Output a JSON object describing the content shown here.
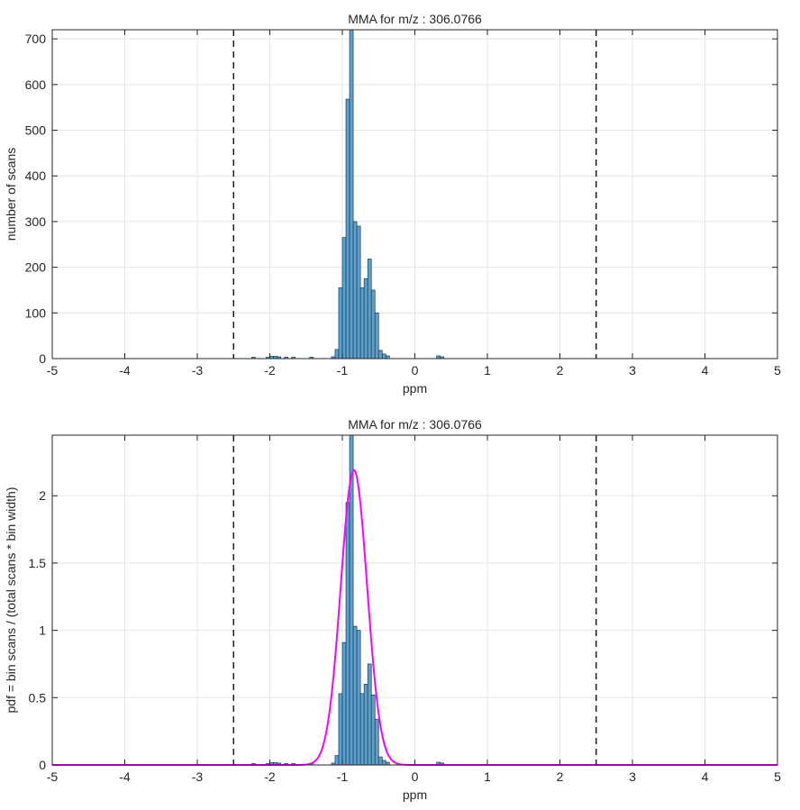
{
  "chart_data": [
    {
      "type": "bar",
      "title": "MMA for m/z : 306.0766",
      "xlabel": "ppm",
      "ylabel": "number of scans",
      "xlim": [
        -5,
        5
      ],
      "ylim": [
        0,
        720
      ],
      "xticks": [
        -5,
        -4,
        -3,
        -2,
        -1,
        0,
        1,
        2,
        3,
        4,
        5
      ],
      "yticks": [
        0,
        100,
        200,
        300,
        400,
        500,
        600,
        700
      ],
      "ytick_labels": [
        "0",
        "100",
        "200",
        "300",
        "400",
        "500",
        "600",
        "700"
      ],
      "grid": true,
      "bin_width": 0.05,
      "bins": [
        {
          "x": -2.25,
          "v": 3
        },
        {
          "x": -2.05,
          "v": 3
        },
        {
          "x": -2.0,
          "v": 5
        },
        {
          "x": -1.95,
          "v": 5
        },
        {
          "x": -1.9,
          "v": 4
        },
        {
          "x": -1.8,
          "v": 3
        },
        {
          "x": -1.7,
          "v": 3
        },
        {
          "x": -1.45,
          "v": 3
        },
        {
          "x": -1.15,
          "v": 4
        },
        {
          "x": -1.1,
          "v": 20
        },
        {
          "x": -1.05,
          "v": 155
        },
        {
          "x": -1.0,
          "v": 265
        },
        {
          "x": -0.95,
          "v": 568
        },
        {
          "x": -0.9,
          "v": 720
        },
        {
          "x": -0.85,
          "v": 300
        },
        {
          "x": -0.8,
          "v": 290
        },
        {
          "x": -0.75,
          "v": 155
        },
        {
          "x": -0.7,
          "v": 175
        },
        {
          "x": -0.65,
          "v": 218
        },
        {
          "x": -0.6,
          "v": 150
        },
        {
          "x": -0.55,
          "v": 100
        },
        {
          "x": -0.5,
          "v": 18
        },
        {
          "x": -0.45,
          "v": 10
        },
        {
          "x": -0.4,
          "v": 6
        },
        {
          "x": 0.3,
          "v": 6
        },
        {
          "x": 0.35,
          "v": 4
        }
      ],
      "vlines": [
        -2.5,
        2.5
      ]
    },
    {
      "type": "bar",
      "title": "MMA for m/z : 306.0766",
      "xlabel": "ppm",
      "ylabel": "pdf = bin scans / (total scans * bin width)",
      "xlim": [
        -5,
        5
      ],
      "ylim": [
        0,
        2.45
      ],
      "xticks": [
        -5,
        -4,
        -3,
        -2,
        -1,
        0,
        1,
        2,
        3,
        4,
        5
      ],
      "yticks": [
        0,
        0.5,
        1,
        1.5,
        2
      ],
      "ytick_labels": [
        "0",
        "0.5",
        "1",
        "1.5",
        "2"
      ],
      "grid": true,
      "bin_width": 0.05,
      "bins": [
        {
          "x": -2.25,
          "v": 0.01
        },
        {
          "x": -2.05,
          "v": 0.01
        },
        {
          "x": -2.0,
          "v": 0.017
        },
        {
          "x": -1.95,
          "v": 0.017
        },
        {
          "x": -1.9,
          "v": 0.014
        },
        {
          "x": -1.8,
          "v": 0.01
        },
        {
          "x": -1.7,
          "v": 0.01
        },
        {
          "x": -1.45,
          "v": 0.01
        },
        {
          "x": -1.15,
          "v": 0.014
        },
        {
          "x": -1.1,
          "v": 0.07
        },
        {
          "x": -1.05,
          "v": 0.53
        },
        {
          "x": -1.0,
          "v": 0.91
        },
        {
          "x": -0.95,
          "v": 1.95
        },
        {
          "x": -0.9,
          "v": 2.47
        },
        {
          "x": -0.85,
          "v": 1.03
        },
        {
          "x": -0.8,
          "v": 1.0
        },
        {
          "x": -0.75,
          "v": 0.53
        },
        {
          "x": -0.7,
          "v": 0.6
        },
        {
          "x": -0.65,
          "v": 0.75
        },
        {
          "x": -0.6,
          "v": 0.52
        },
        {
          "x": -0.55,
          "v": 0.34
        },
        {
          "x": -0.5,
          "v": 0.06
        },
        {
          "x": -0.45,
          "v": 0.034
        },
        {
          "x": -0.4,
          "v": 0.02
        },
        {
          "x": 0.3,
          "v": 0.02
        },
        {
          "x": 0.35,
          "v": 0.014
        }
      ],
      "vlines": [
        -2.5,
        2.5
      ],
      "fit": {
        "type": "gaussian",
        "mean": -0.84,
        "sigma": 0.182,
        "peak": 2.19,
        "color": "#ff00ff"
      }
    }
  ],
  "colors": {
    "bar_fill": "#5aa1cf",
    "bar_edge": "#1f3a4d",
    "grid": "#e6e6e6",
    "axis": "#262626",
    "vline": "#000000"
  }
}
